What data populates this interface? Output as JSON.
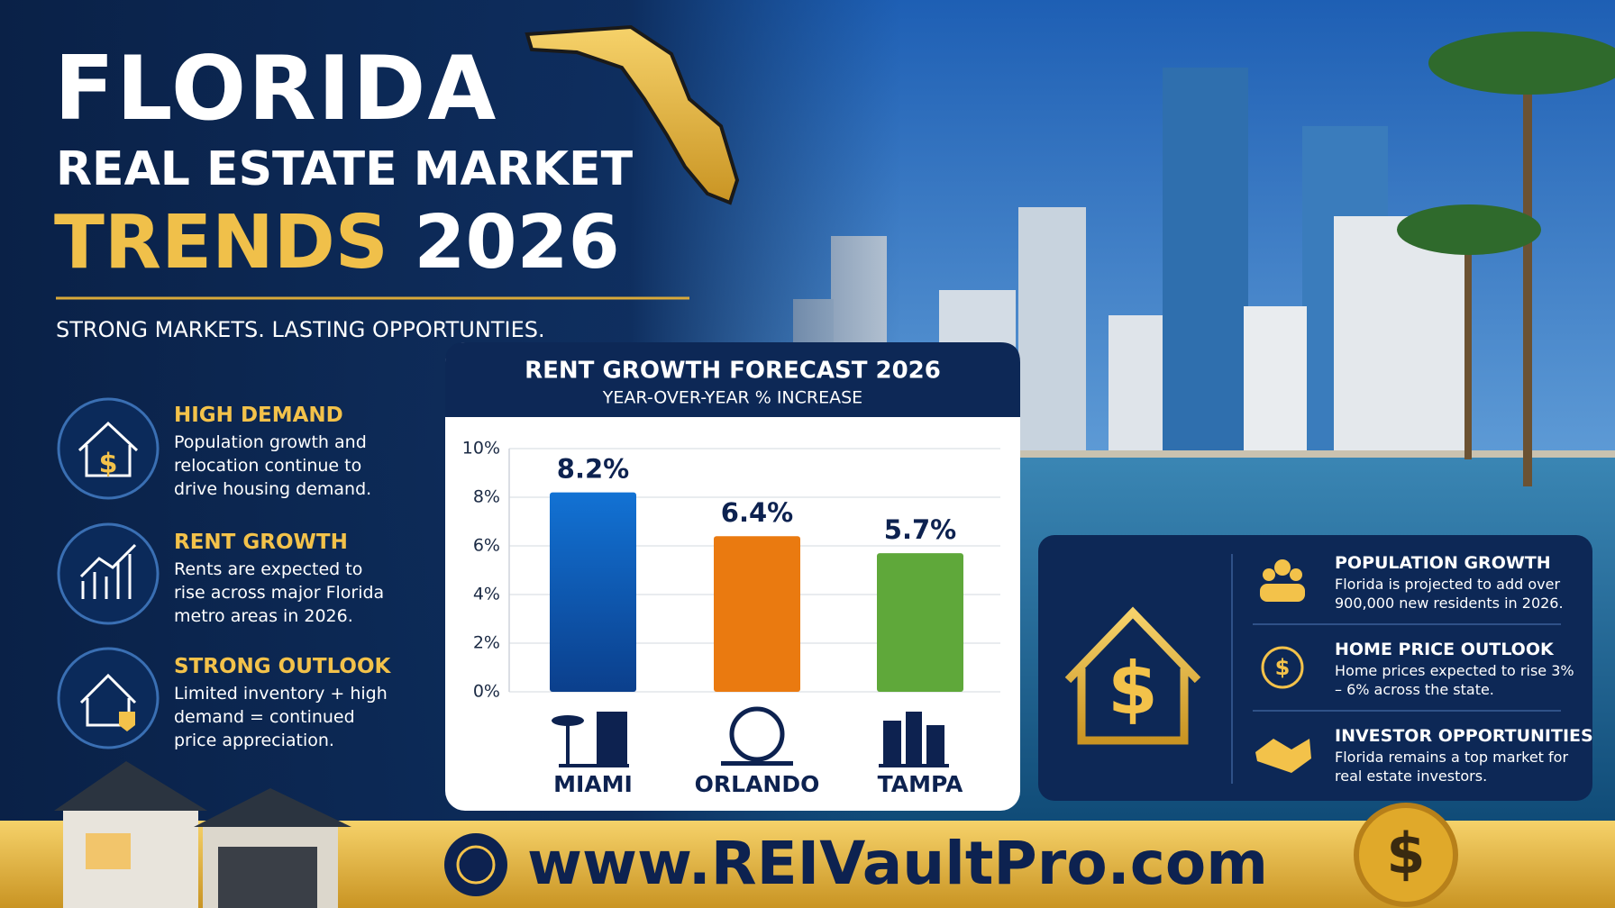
{
  "header": {
    "title": "FLORIDA",
    "line_1": "REAL ESTATE MARKET",
    "line_2a": "TRENDS",
    "line_2b": "2026",
    "tagline": "STRONG MARKETS. LASTING OPPORTUNTIES."
  },
  "features": [
    {
      "title": "HIGH DEMAND",
      "text": "Population growth and relocation continue to drive housing demand."
    },
    {
      "title": "RENT GROWTH",
      "text": "Rents are expected to rise across major Florida metro areas in 2026."
    },
    {
      "title": "STRONG OUTLOOK",
      "text": "Limited inventory + high demand = continued price appreciation."
    }
  ],
  "chart_data": {
    "type": "bar",
    "title": "RENT GROWTH FORECAST 2026",
    "subtitle": "YEAR-OVER-YEAR % INCREASE",
    "categories": [
      "MIAMI",
      "ORLANDO",
      "TAMPA"
    ],
    "values": [
      8.2,
      6.4,
      5.7
    ],
    "value_labels": [
      "8.2%",
      "6.4%",
      "5.7%"
    ],
    "colors": [
      "#0d5cb8",
      "#ea7a10",
      "#5fa83a"
    ],
    "ylim": [
      0,
      10
    ],
    "yticks": [
      {
        "value": 0,
        "label": "0%"
      },
      {
        "value": 2,
        "label": "2%"
      },
      {
        "value": 4,
        "label": "4%"
      },
      {
        "value": 6,
        "label": "6%"
      },
      {
        "value": 8,
        "label": "8%"
      },
      {
        "value": 10,
        "label": "10%"
      }
    ],
    "grid": true
  },
  "stats": [
    {
      "title": "POPULATION GROWTH",
      "text": "Florida is projected to add over 900,000 new residents in 2026."
    },
    {
      "title": "HOME PRICE OUTLOOK",
      "text": "Home prices expected to rise 3% – 6% across the state."
    },
    {
      "title": "INVESTOR OPPORTUNITIES",
      "text": "Florida remains a top market for real estate investors."
    }
  ],
  "footer": {
    "url": "www.REIVaultPro.com"
  }
}
